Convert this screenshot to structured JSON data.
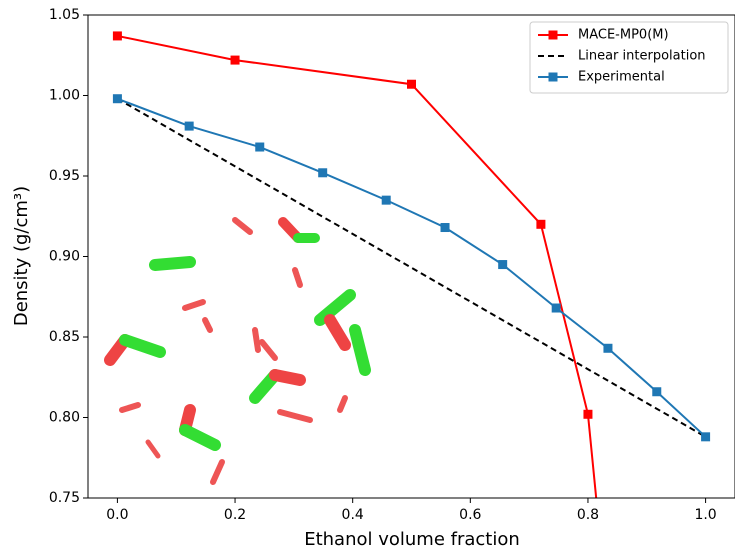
{
  "chart_data": {
    "type": "line",
    "xlabel": "Ethanol volume fraction",
    "ylabel": "Density (g/cm³)",
    "xlim": [
      -0.05,
      1.05
    ],
    "ylim": [
      0.75,
      1.05
    ],
    "xticks": [
      {
        "value": 0,
        "label": "0.0"
      },
      0.2,
      0.4,
      0.6,
      0.8,
      {
        "value": 1,
        "label": "1.0"
      }
    ],
    "yticks": [
      0.75,
      {
        "value": 0.8,
        "label": "0.80"
      },
      0.85,
      {
        "value": 0.9,
        "label": "0.90"
      },
      0.95,
      {
        "value": 1,
        "label": "1.00"
      },
      1.05
    ],
    "legend": "upper right",
    "series": [
      {
        "name": "MACE-MP0(M)",
        "color": "#ff0000",
        "style": "solid",
        "marker": true,
        "x": [
          0,
          0.2,
          0.5,
          0.72,
          0.8,
          0.814
        ],
        "values": [
          1.037,
          1.022,
          1.007,
          0.92,
          0.802,
          0.75
        ]
      },
      {
        "name": "Linear interpolation",
        "color": "#000000",
        "style": "dashed",
        "marker": false,
        "x": [
          0,
          1
        ],
        "values": [
          0.998,
          0.788
        ]
      },
      {
        "name": "Experimental",
        "color": "#1f77b4",
        "style": "solid",
        "marker": true,
        "x": [
          0,
          0.122,
          0.242,
          0.349,
          0.457,
          0.557,
          0.655,
          0.746,
          0.834,
          0.917,
          1
        ],
        "values": [
          0.998,
          0.981,
          0.968,
          0.952,
          0.935,
          0.918,
          0.895,
          0.868,
          0.843,
          0.816,
          0.788
        ]
      }
    ]
  }
}
